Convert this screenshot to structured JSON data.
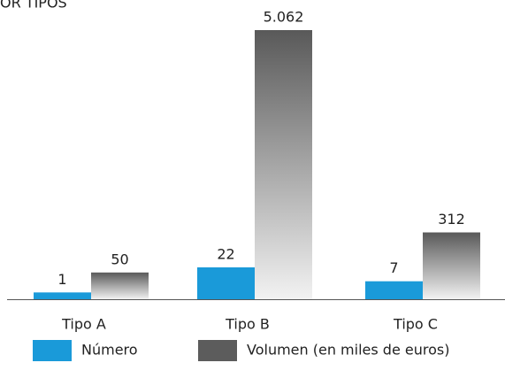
{
  "chart_data": {
    "type": "bar",
    "title": "OR TIPOS",
    "categories": [
      "Tipo A",
      "Tipo B",
      "Tipo C"
    ],
    "series": [
      {
        "name": "Número",
        "color": "#1a9ad9",
        "values": [
          1,
          22,
          7
        ]
      },
      {
        "name": "Volumen (en miles de euros)",
        "color": "#5c5c5c",
        "values": [
          50,
          5062,
          312
        ],
        "value_labels": [
          "50",
          "5.062",
          "312"
        ]
      }
    ]
  }
}
